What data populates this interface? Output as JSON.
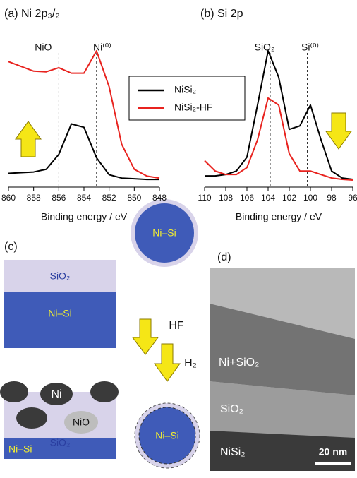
{
  "chart_data": [
    {
      "type": "line",
      "title": "(a) Ni 2p₃/₂",
      "x_label": "Binding energy / eV",
      "xlim": [
        860,
        848
      ],
      "xticks": [
        860,
        858,
        856,
        854,
        852,
        850,
        848
      ],
      "x": [
        860,
        859,
        858,
        857,
        856,
        855,
        854,
        853,
        852,
        851,
        850,
        849,
        848
      ],
      "series": [
        {
          "name": "NiSi₂",
          "color": "#000000",
          "values": [
            12,
            13,
            14,
            18,
            40,
            85,
            80,
            35,
            10,
            5,
            4,
            3,
            3
          ]
        },
        {
          "name": "NiSi₂-HF",
          "color": "#e8231f",
          "values": [
            177,
            170,
            163,
            162,
            168,
            160,
            160,
            193,
            140,
            55,
            18,
            8,
            5
          ]
        }
      ],
      "annotations": [
        {
          "text": "NiO",
          "x": 856
        },
        {
          "text": "Ni⁽⁰⁾",
          "x": 853
        }
      ]
    },
    {
      "type": "line",
      "title": "(b) Si 2p",
      "x_label": "Binding energy / eV",
      "xlim": [
        110,
        96
      ],
      "xticks": [
        110,
        108,
        106,
        104,
        102,
        100,
        98,
        96
      ],
      "x": [
        110,
        109,
        108,
        107,
        106,
        105,
        104,
        103,
        102,
        101,
        100,
        99,
        98,
        97,
        96
      ],
      "series": [
        {
          "name": "NiSi₂",
          "color": "#000000",
          "values": [
            8,
            8,
            10,
            15,
            35,
            110,
            188,
            150,
            75,
            80,
            110,
            60,
            15,
            5,
            3
          ]
        },
        {
          "name": "NiSi₂-HF",
          "color": "#e8231f",
          "values": [
            30,
            15,
            10,
            10,
            20,
            60,
            120,
            110,
            40,
            15,
            15,
            10,
            5,
            3,
            2
          ]
        }
      ],
      "annotations": [
        {
          "text": "SiO₂",
          "x": 103.8
        },
        {
          "text": "Si⁽⁰⁾",
          "x": 100.3
        }
      ]
    }
  ],
  "schematic": {
    "label": "(c)",
    "sio2_top": "SiO₂",
    "nisi_top": "Ni–Si",
    "nisi_circle": "Ni–Si",
    "ni": "Ni",
    "nio": "NiO",
    "sio2_bottom": "SiO₂",
    "nisi_bottom": "Ni–Si",
    "hf": "HF",
    "h2": "H₂",
    "nisi_circle2": "Ni–Si"
  },
  "tem": {
    "label": "(d)",
    "layer1": "Ni+SiO₂",
    "layer2": "SiO₂",
    "layer3": "NiSi₂",
    "scale": "20 nm"
  }
}
